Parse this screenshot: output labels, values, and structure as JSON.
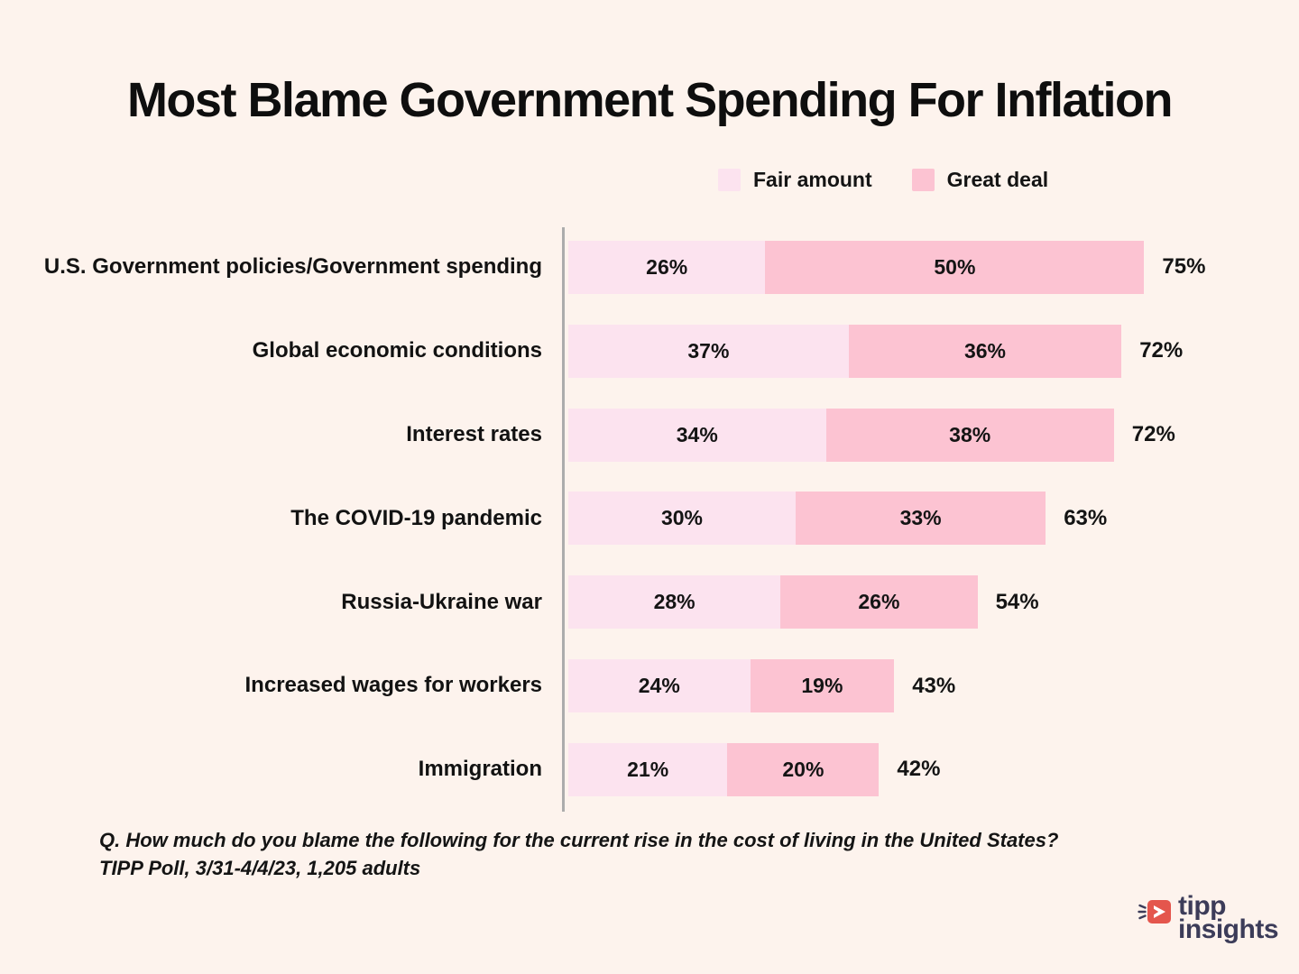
{
  "page": {
    "background": "#FDF3ED"
  },
  "title": "Most Blame Government Spending For Inflation",
  "legend": {
    "items": [
      {
        "label": "Fair amount",
        "color": "#FCE3EF"
      },
      {
        "label": "Great deal",
        "color": "#FCC3D2"
      }
    ]
  },
  "chart_data": {
    "type": "bar",
    "orientation": "horizontal",
    "stacked": true,
    "unit": "%",
    "title": "Most Blame Government Spending For Inflation",
    "legend_position": "top-center",
    "value_labels": "inside-segments-and-total-right",
    "grid": false,
    "axis_line_color": "#ACACAC",
    "categories": [
      "U.S. Government policies/Government spending",
      "Global economic conditions",
      "Interest rates",
      "The COVID-19 pandemic",
      "Russia-Ukraine war",
      "Increased wages for workers",
      "Immigration"
    ],
    "series": [
      {
        "name": "Fair amount",
        "color": "#FCE3EF",
        "values": [
          26,
          37,
          34,
          30,
          28,
          24,
          21
        ]
      },
      {
        "name": "Great deal",
        "color": "#FCC3D2",
        "values": [
          50,
          36,
          38,
          33,
          26,
          19,
          20
        ]
      }
    ],
    "totals": [
      75,
      72,
      72,
      63,
      54,
      43,
      42
    ],
    "rows": [
      {
        "category": "U.S. Government policies/Government spending",
        "fair": 26,
        "great": 50,
        "total": 75,
        "fair_label": "26%",
        "great_label": "50%",
        "total_label": "75%"
      },
      {
        "category": "Global economic conditions",
        "fair": 37,
        "great": 36,
        "total": 72,
        "fair_label": "37%",
        "great_label": "36%",
        "total_label": "72%"
      },
      {
        "category": "Interest rates",
        "fair": 34,
        "great": 38,
        "total": 72,
        "fair_label": "34%",
        "great_label": "38%",
        "total_label": "72%"
      },
      {
        "category": "The COVID-19 pandemic",
        "fair": 30,
        "great": 33,
        "total": 63,
        "fair_label": "30%",
        "great_label": "33%",
        "total_label": "63%"
      },
      {
        "category": "Russia-Ukraine war",
        "fair": 28,
        "great": 26,
        "total": 54,
        "fair_label": "28%",
        "great_label": "26%",
        "total_label": "54%"
      },
      {
        "category": "Increased wages for workers",
        "fair": 24,
        "great": 19,
        "total": 43,
        "fair_label": "24%",
        "great_label": "19%",
        "total_label": "43%"
      },
      {
        "category": "Immigration",
        "fair": 21,
        "great": 20,
        "total": 42,
        "fair_label": "21%",
        "great_label": "20%",
        "total_label": "42%"
      }
    ]
  },
  "footer": {
    "question": "Q. How much do you blame the following for the current rise in the cost of living in the United States?",
    "source": "TIPP Poll, 3/31-4/4/23, 1,205 adults"
  },
  "logo": {
    "line1": "tipp",
    "line2": "insights",
    "icon_color": "#E4564D",
    "text_color": "#3C3C59"
  }
}
